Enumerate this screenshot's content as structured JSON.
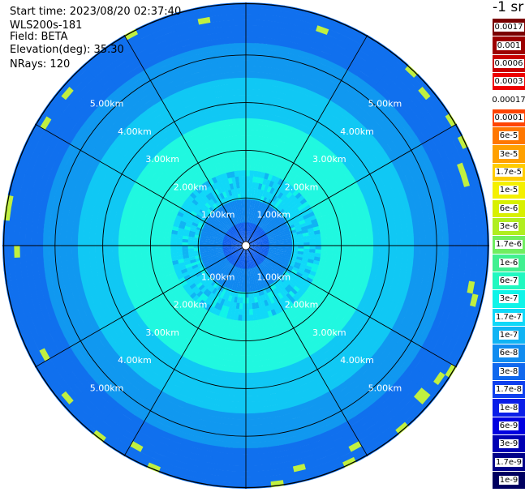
{
  "info": {
    "start_time": "Start time: 2023/08/20 02:37:40",
    "instrument": "WLS200s-181",
    "field": "Field: BETA",
    "elevation": "Elevation(deg): 35.30",
    "nrays": "NRays: 120"
  },
  "unit_label": "-1 sr",
  "chart_data": {
    "type": "heatmap",
    "projection": "polar",
    "field": "BETA",
    "range_rings": [
      "1.00km",
      "2.00km",
      "3.00km",
      "4.00km",
      "5.00km"
    ],
    "max_range_km": 5.0,
    "radial_spokes_deg": [
      0,
      30,
      60,
      90,
      120,
      150,
      180,
      210,
      240,
      270,
      300,
      330
    ],
    "grid": true,
    "legend": {
      "placement": "right",
      "entries": [
        {
          "label": "0.0017",
          "color": "#7a0000"
        },
        {
          "label": "0.001",
          "color": "#9c0000"
        },
        {
          "label": "0.0006",
          "color": "#c80000"
        },
        {
          "label": "0.0003",
          "color": "#ee0000"
        },
        {
          "label": "0.00017",
          "color": "#ffffff"
        },
        {
          "label": "0.0001",
          "color": "#ff4400"
        },
        {
          "label": "6e-5",
          "color": "#ff7700"
        },
        {
          "label": "3e-5",
          "color": "#ffa000"
        },
        {
          "label": "1.7e-5",
          "color": "#ffcc00"
        },
        {
          "label": "1e-5",
          "color": "#f4f000"
        },
        {
          "label": "6e-6",
          "color": "#d8f000"
        },
        {
          "label": "3e-6",
          "color": "#b0ee20"
        },
        {
          "label": "1.7e-6",
          "color": "#70ee60"
        },
        {
          "label": "1e-6",
          "color": "#40f090"
        },
        {
          "label": "6e-7",
          "color": "#20f8c0"
        },
        {
          "label": "3e-7",
          "color": "#10f4e8"
        },
        {
          "label": "1.7e-7",
          "color": "#10d8f8"
        },
        {
          "label": "1e-7",
          "color": "#10b4f4"
        },
        {
          "label": "6e-8",
          "color": "#108cf0"
        },
        {
          "label": "3e-8",
          "color": "#1068ee"
        },
        {
          "label": "1.7e-8",
          "color": "#1040ee"
        },
        {
          "label": "1e-8",
          "color": "#0a1ee8"
        },
        {
          "label": "6e-9",
          "color": "#0000e0"
        },
        {
          "label": "3e-9",
          "color": "#0000b4"
        },
        {
          "label": "1.7e-9",
          "color": "#000088"
        },
        {
          "label": "1e-9",
          "color": "#000060"
        }
      ]
    },
    "radial_profile_approx": [
      {
        "range_km": 0.5,
        "color": "#1060ee"
      },
      {
        "range_km": 1.0,
        "color": "#1088f0"
      },
      {
        "range_km": 1.6,
        "color": "#10d8f8"
      },
      {
        "range_km": 2.6,
        "color": "#20f8e0"
      },
      {
        "range_km": 3.4,
        "color": "#10c8f4"
      },
      {
        "range_km": 4.2,
        "color": "#1098f0"
      },
      {
        "range_km": 5.0,
        "color": "#1070ee"
      }
    ]
  }
}
